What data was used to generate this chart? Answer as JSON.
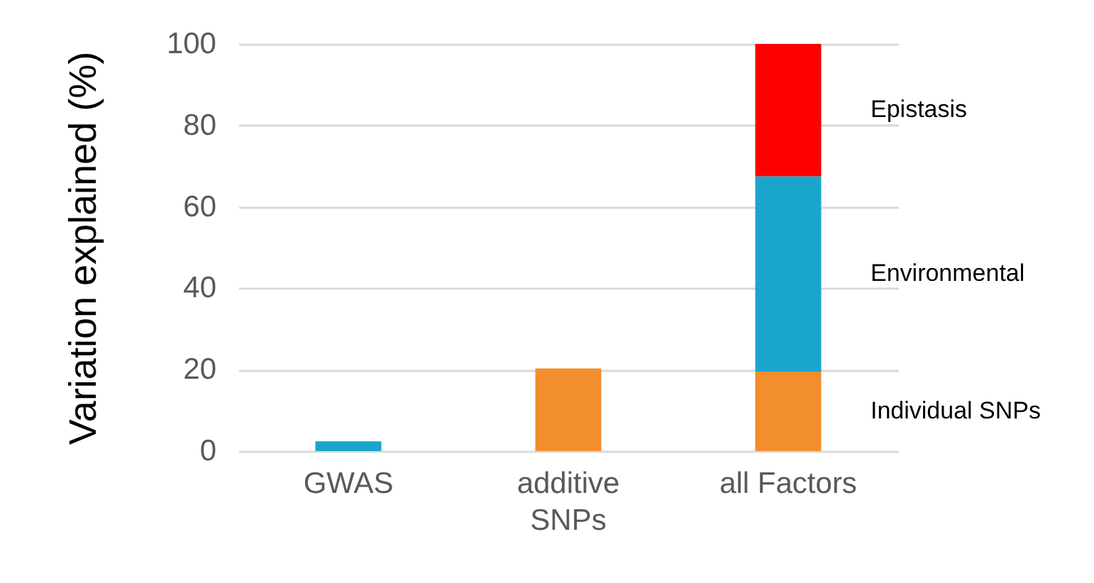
{
  "chart_data": {
    "type": "bar",
    "ylabel": "Variation explained (%)",
    "categories": [
      "GWAS",
      "additive SNPs",
      "all Factors"
    ],
    "stacked": true,
    "series": [
      {
        "color": "#1aa6cc",
        "values": [
          2.4,
          null,
          null
        ]
      },
      {
        "name": "Individual SNPs",
        "color": "#f28e2b",
        "values": [
          null,
          20.3,
          19.5
        ]
      },
      {
        "name": "Environmental",
        "color": "#1aa6cc",
        "values": [
          null,
          null,
          48
        ]
      },
      {
        "name": "Epistasis",
        "color": "#ff0000",
        "values": [
          null,
          null,
          32.5
        ]
      }
    ],
    "ylim": [
      0,
      100
    ],
    "yticks": [
      0,
      20,
      40,
      60,
      80,
      100
    ],
    "grid": "y",
    "legend": false
  }
}
